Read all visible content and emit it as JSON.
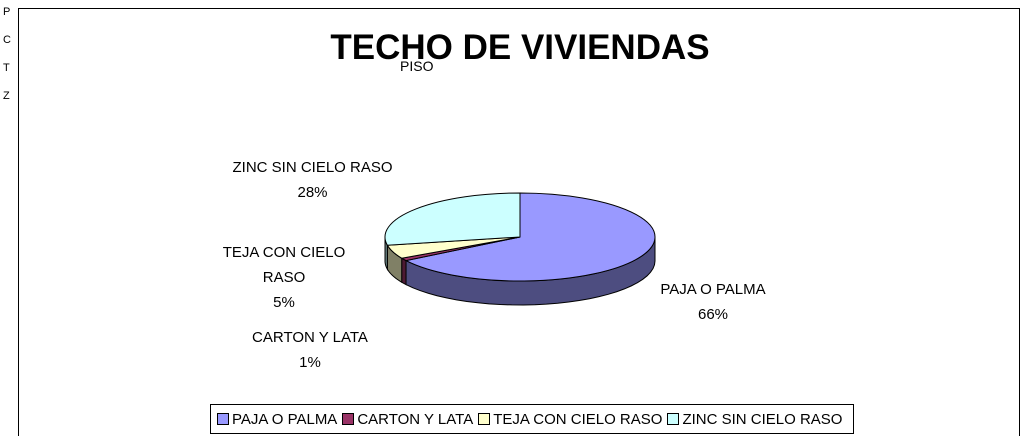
{
  "background_labels": [
    "P",
    "C",
    "T",
    "Z"
  ],
  "chart_data": {
    "type": "pie3d",
    "title": "TECHO DE VIVIENDAS",
    "subtitle": "PISO",
    "categories": [
      "PAJA O PALMA",
      "CARTON Y LATA",
      "TEJA CON CIELO RASO",
      "ZINC SIN CIELO RASO"
    ],
    "values": [
      66,
      1,
      5,
      28
    ],
    "value_labels": [
      "66%",
      "1%",
      "5%",
      "28%"
    ],
    "colors": [
      "#9999ff",
      "#993366",
      "#ffffcc",
      "#ccffff"
    ],
    "legend": "bottom"
  }
}
